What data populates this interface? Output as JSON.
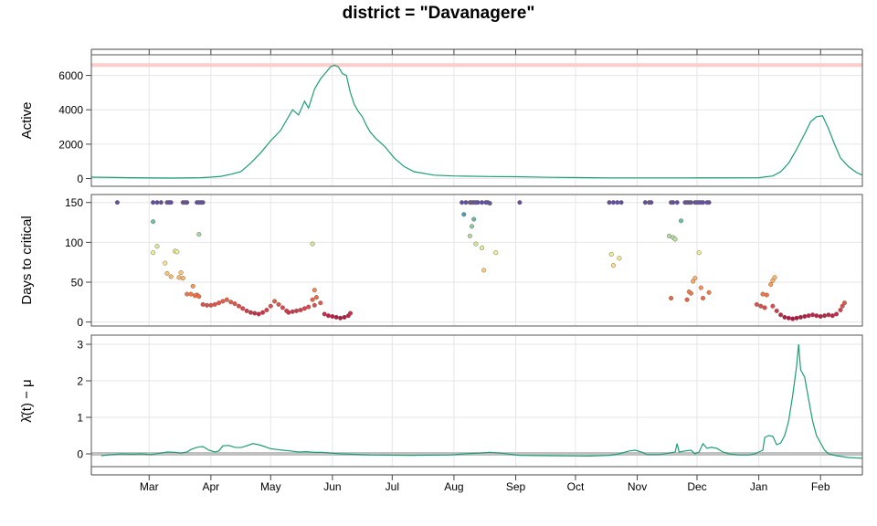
{
  "chart_data": {
    "type": "multi-panel time series",
    "title": "district = \"Davanagere\"",
    "x_axis": {
      "tick_labels": [
        "Mar",
        "Apr",
        "May",
        "Jun",
        "Jul",
        "Aug",
        "Sep",
        "Oct",
        "Nov",
        "Dec",
        "Jan",
        "Feb"
      ],
      "tick_days": [
        29,
        60,
        90,
        121,
        151,
        182,
        213,
        243,
        274,
        304,
        335,
        366
      ],
      "xlim": [
        0,
        387
      ]
    },
    "panels": [
      {
        "id": "active",
        "type": "line",
        "ylabel": "Active",
        "yticks": [
          0,
          2000,
          4000,
          6000
        ],
        "ylim": [
          -450,
          7200
        ],
        "reference_line": {
          "value": 6600,
          "color": "#ffcccc"
        },
        "line_color": "#1b9e77",
        "series": [
          [
            0,
            80
          ],
          [
            20,
            50
          ],
          [
            40,
            30
          ],
          [
            55,
            50
          ],
          [
            60,
            80
          ],
          [
            65,
            130
          ],
          [
            70,
            250
          ],
          [
            75,
            400
          ],
          [
            80,
            900
          ],
          [
            85,
            1500
          ],
          [
            90,
            2200
          ],
          [
            95,
            2800
          ],
          [
            98,
            3400
          ],
          [
            101,
            4000
          ],
          [
            104,
            3700
          ],
          [
            107,
            4500
          ],
          [
            109,
            4100
          ],
          [
            112,
            5200
          ],
          [
            115,
            5800
          ],
          [
            118,
            6200
          ],
          [
            120,
            6500
          ],
          [
            122,
            6600
          ],
          [
            124,
            6500
          ],
          [
            126,
            6100
          ],
          [
            128,
            6000
          ],
          [
            130,
            5000
          ],
          [
            132,
            4300
          ],
          [
            134,
            3900
          ],
          [
            136,
            3600
          ],
          [
            138,
            3100
          ],
          [
            140,
            2700
          ],
          [
            143,
            2300
          ],
          [
            147,
            1900
          ],
          [
            152,
            1200
          ],
          [
            157,
            700
          ],
          [
            162,
            400
          ],
          [
            172,
            200
          ],
          [
            182,
            150
          ],
          [
            200,
            120
          ],
          [
            213,
            110
          ],
          [
            230,
            70
          ],
          [
            260,
            40
          ],
          [
            300,
            40
          ],
          [
            335,
            50
          ],
          [
            342,
            150
          ],
          [
            346,
            400
          ],
          [
            350,
            900
          ],
          [
            354,
            1700
          ],
          [
            358,
            2600
          ],
          [
            361,
            3300
          ],
          [
            364,
            3600
          ],
          [
            367,
            3650
          ],
          [
            370,
            2900
          ],
          [
            373,
            2000
          ],
          [
            376,
            1200
          ],
          [
            380,
            700
          ],
          [
            384,
            350
          ],
          [
            387,
            200
          ]
        ]
      },
      {
        "id": "days_to_critical",
        "type": "scatter",
        "ylabel": "Days to critical",
        "yticks": [
          0,
          50,
          100,
          150
        ],
        "ylim": [
          -5,
          160
        ],
        "colormap": "Spectral (low = red, high = blue)",
        "points": [
          [
            13,
            150
          ],
          [
            31,
            150
          ],
          [
            33,
            150
          ],
          [
            35,
            150
          ],
          [
            38,
            150
          ],
          [
            39,
            150
          ],
          [
            40,
            150
          ],
          [
            46,
            150
          ],
          [
            47,
            150
          ],
          [
            48,
            150
          ],
          [
            53,
            150
          ],
          [
            54,
            150
          ],
          [
            55,
            150
          ],
          [
            56,
            150
          ],
          [
            31,
            126
          ],
          [
            54,
            110
          ],
          [
            33,
            95
          ],
          [
            31,
            87
          ],
          [
            42,
            89
          ],
          [
            43,
            88
          ],
          [
            37,
            74
          ],
          [
            38,
            61
          ],
          [
            45,
            62
          ],
          [
            44,
            56
          ],
          [
            40,
            57
          ],
          [
            51,
            45
          ],
          [
            46,
            55
          ],
          [
            48,
            35
          ],
          [
            50,
            35
          ],
          [
            53,
            34
          ],
          [
            52,
            33
          ],
          [
            54,
            32
          ],
          [
            56,
            22
          ],
          [
            58,
            21
          ],
          [
            60,
            21
          ],
          [
            62,
            22
          ],
          [
            64,
            24
          ],
          [
            66,
            26
          ],
          [
            68,
            28
          ],
          [
            70,
            25
          ],
          [
            72,
            23
          ],
          [
            74,
            20
          ],
          [
            76,
            17
          ],
          [
            78,
            14
          ],
          [
            80,
            12
          ],
          [
            82,
            11
          ],
          [
            84,
            10
          ],
          [
            86,
            12
          ],
          [
            88,
            15
          ],
          [
            90,
            20
          ],
          [
            92,
            26
          ],
          [
            94,
            22
          ],
          [
            96,
            18
          ],
          [
            98,
            14
          ],
          [
            99,
            12
          ],
          [
            101,
            13
          ],
          [
            103,
            14
          ],
          [
            105,
            15
          ],
          [
            107,
            17
          ],
          [
            109,
            19
          ],
          [
            111,
            28
          ],
          [
            112,
            40
          ],
          [
            113,
            31
          ],
          [
            115,
            24
          ],
          [
            117,
            10
          ],
          [
            119,
            8
          ],
          [
            121,
            7
          ],
          [
            123,
            6
          ],
          [
            125,
            5
          ],
          [
            127,
            6
          ],
          [
            129,
            8
          ],
          [
            130,
            11
          ],
          [
            112,
            21
          ],
          [
            111,
            98
          ],
          [
            186,
            150
          ],
          [
            188,
            150
          ],
          [
            190,
            150
          ],
          [
            191,
            150
          ],
          [
            192,
            150
          ],
          [
            193,
            150
          ],
          [
            194,
            150
          ],
          [
            196,
            150
          ],
          [
            198,
            150
          ],
          [
            199,
            150
          ],
          [
            200,
            149
          ],
          [
            215,
            150
          ],
          [
            187,
            135
          ],
          [
            192,
            129
          ],
          [
            191,
            120
          ],
          [
            190,
            108
          ],
          [
            193,
            98
          ],
          [
            196,
            93
          ],
          [
            203,
            87
          ],
          [
            197,
            65
          ],
          [
            260,
            150
          ],
          [
            262,
            150
          ],
          [
            264,
            150
          ],
          [
            266,
            150
          ],
          [
            278,
            150
          ],
          [
            280,
            150
          ],
          [
            281,
            150
          ],
          [
            291,
            150
          ],
          [
            292,
            150
          ],
          [
            294,
            150
          ],
          [
            298,
            150
          ],
          [
            299,
            150
          ],
          [
            300,
            150
          ],
          [
            301,
            150
          ],
          [
            303,
            150
          ],
          [
            304,
            150
          ],
          [
            305,
            150
          ],
          [
            306,
            150
          ],
          [
            307,
            150
          ],
          [
            309,
            150
          ],
          [
            310,
            150
          ],
          [
            296,
            127
          ],
          [
            290,
            108
          ],
          [
            292,
            106
          ],
          [
            293,
            104
          ],
          [
            305,
            87
          ],
          [
            261,
            85
          ],
          [
            265,
            80
          ],
          [
            262,
            71
          ],
          [
            291,
            30
          ],
          [
            303,
            55
          ],
          [
            302,
            51
          ],
          [
            306,
            43
          ],
          [
            300,
            38
          ],
          [
            301,
            36
          ],
          [
            299,
            28
          ],
          [
            307,
            30
          ],
          [
            310,
            37
          ],
          [
            334,
            22
          ],
          [
            336,
            20
          ],
          [
            338,
            18
          ],
          [
            337,
            35
          ],
          [
            339,
            34
          ],
          [
            341,
            47
          ],
          [
            342,
            52
          ],
          [
            343,
            56
          ],
          [
            342,
            20
          ],
          [
            344,
            14
          ],
          [
            346,
            9
          ],
          [
            348,
            6
          ],
          [
            350,
            5
          ],
          [
            352,
            4
          ],
          [
            354,
            5
          ],
          [
            356,
            6
          ],
          [
            358,
            7
          ],
          [
            360,
            8
          ],
          [
            362,
            9
          ],
          [
            364,
            8
          ],
          [
            366,
            7
          ],
          [
            368,
            8
          ],
          [
            370,
            9
          ],
          [
            372,
            8
          ],
          [
            374,
            10
          ],
          [
            376,
            15
          ],
          [
            377,
            20
          ],
          [
            378,
            24
          ]
        ]
      },
      {
        "id": "lambda_minus_mu",
        "type": "line",
        "ylabel": "λ̂(t) − μ",
        "yticks": [
          0,
          1,
          2,
          3
        ],
        "ylim": [
          -0.35,
          3.25
        ],
        "reference_line": {
          "value": 0,
          "color": "#c0c0c0"
        },
        "line_color": "#1b9e77",
        "series": [
          [
            5,
            -0.05
          ],
          [
            10,
            -0.02
          ],
          [
            15,
            0.0
          ],
          [
            20,
            -0.01
          ],
          [
            25,
            0.0
          ],
          [
            30,
            -0.02
          ],
          [
            35,
            0.02
          ],
          [
            38,
            0.05
          ],
          [
            42,
            0.04
          ],
          [
            45,
            0.02
          ],
          [
            48,
            0.05
          ],
          [
            50,
            0.12
          ],
          [
            53,
            0.18
          ],
          [
            56,
            0.2
          ],
          [
            59,
            0.1
          ],
          [
            62,
            0.05
          ],
          [
            64,
            0.08
          ],
          [
            66,
            0.22
          ],
          [
            69,
            0.23
          ],
          [
            72,
            0.18
          ],
          [
            75,
            0.17
          ],
          [
            78,
            0.22
          ],
          [
            81,
            0.28
          ],
          [
            84,
            0.25
          ],
          [
            87,
            0.2
          ],
          [
            90,
            0.14
          ],
          [
            93,
            0.12
          ],
          [
            96,
            0.1
          ],
          [
            100,
            0.08
          ],
          [
            104,
            0.05
          ],
          [
            108,
            0.06
          ],
          [
            112,
            0.04
          ],
          [
            116,
            0.04
          ],
          [
            120,
            0.02
          ],
          [
            125,
            0.0
          ],
          [
            130,
            -0.01
          ],
          [
            140,
            -0.03
          ],
          [
            160,
            -0.04
          ],
          [
            180,
            -0.03
          ],
          [
            190,
            0.01
          ],
          [
            195,
            0.02
          ],
          [
            200,
            0.04
          ],
          [
            205,
            0.02
          ],
          [
            215,
            -0.04
          ],
          [
            230,
            -0.05
          ],
          [
            250,
            -0.06
          ],
          [
            260,
            -0.04
          ],
          [
            265,
            0.0
          ],
          [
            270,
            0.08
          ],
          [
            273,
            0.1
          ],
          [
            276,
            0.05
          ],
          [
            279,
            -0.02
          ],
          [
            285,
            -0.02
          ],
          [
            290,
            0.02
          ],
          [
            293,
            0.05
          ],
          [
            294,
            0.28
          ],
          [
            295,
            0.05
          ],
          [
            298,
            0.08
          ],
          [
            301,
            0.1
          ],
          [
            303,
            0.0
          ],
          [
            305,
            0.05
          ],
          [
            307,
            0.28
          ],
          [
            309,
            0.15
          ],
          [
            311,
            0.18
          ],
          [
            314,
            0.15
          ],
          [
            317,
            0.05
          ],
          [
            320,
            0.0
          ],
          [
            325,
            -0.03
          ],
          [
            330,
            -0.03
          ],
          [
            333,
            0.0
          ],
          [
            335,
            0.05
          ],
          [
            337,
            0.1
          ],
          [
            338,
            0.45
          ],
          [
            340,
            0.5
          ],
          [
            342,
            0.48
          ],
          [
            344,
            0.25
          ],
          [
            346,
            0.3
          ],
          [
            348,
            0.5
          ],
          [
            350,
            0.9
          ],
          [
            352,
            1.6
          ],
          [
            354,
            2.4
          ],
          [
            355,
            3.0
          ],
          [
            356,
            2.3
          ],
          [
            358,
            2.1
          ],
          [
            360,
            1.5
          ],
          [
            362,
            0.9
          ],
          [
            364,
            0.5
          ],
          [
            366,
            0.3
          ],
          [
            368,
            0.1
          ],
          [
            370,
            0.0
          ],
          [
            374,
            -0.05
          ],
          [
            380,
            -0.1
          ],
          [
            387,
            -0.12
          ]
        ]
      }
    ]
  }
}
